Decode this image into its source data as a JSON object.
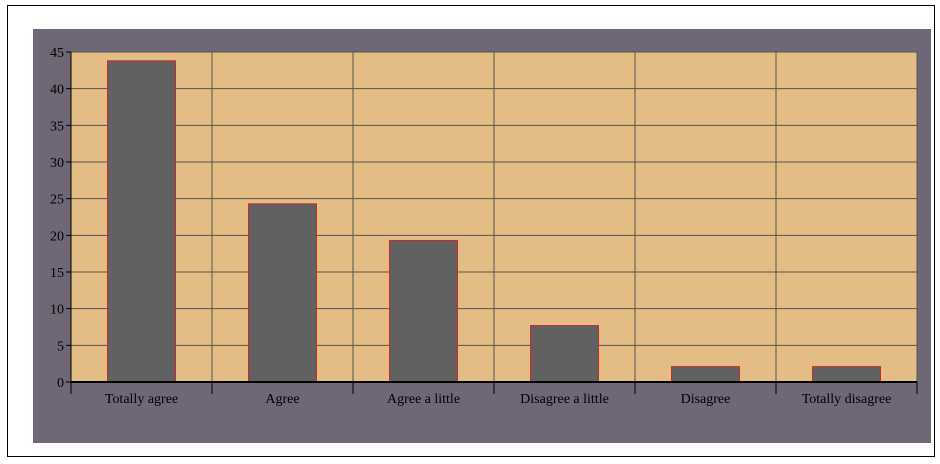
{
  "chart_data": {
    "type": "bar",
    "title": "",
    "xlabel": "",
    "ylabel": "",
    "categories": [
      "Totally agree",
      "Agree",
      "Agree a little",
      "Disagree a little",
      "Disagree",
      "Totally disagree"
    ],
    "series": [
      {
        "values": [
          43.8,
          24.3,
          19.3,
          7.7,
          2.1,
          2.1
        ]
      }
    ],
    "ylim": [
      0,
      45
    ],
    "yticks": [
      "0",
      "5",
      "10",
      "15",
      "20",
      "25",
      "30",
      "35",
      "40",
      "45"
    ],
    "grid": true,
    "legend": "none",
    "colors": {
      "outer_background": "#6f6676",
      "plot_background": "#e3bd84",
      "bar_fill": "#616161",
      "bar_stroke": "#cc2a2a",
      "gridline": "#555555",
      "axis": "#000000",
      "tick_label": "#000000"
    }
  }
}
